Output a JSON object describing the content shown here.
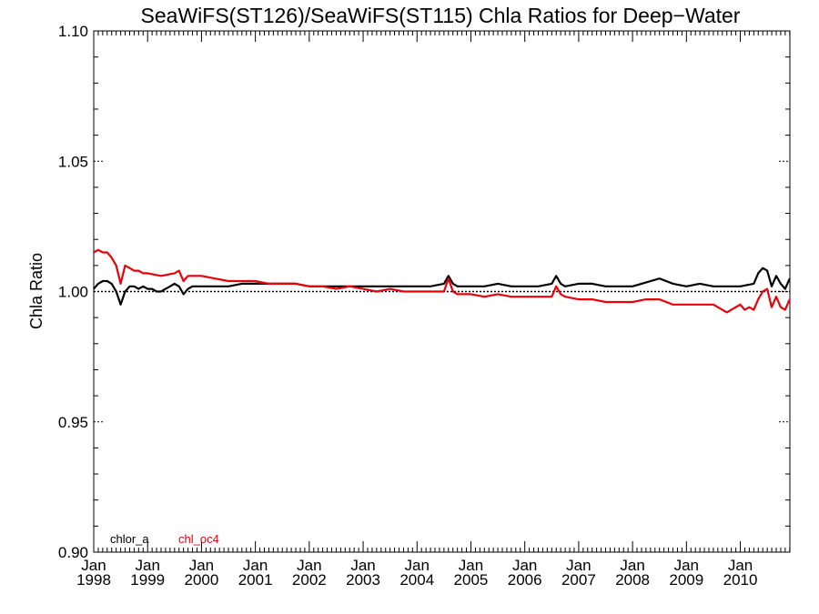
{
  "chart_data": {
    "type": "line",
    "title": "SeaWiFS(ST126)/SeaWiFS(ST115)  Chla Ratios for Deep−Water",
    "xlabel": "",
    "ylabel": "Chla Ratio",
    "xlim": [
      1998.0,
      2010.92
    ],
    "ylim": [
      0.9,
      1.1
    ],
    "y_ticks": [
      "0.90",
      "0.95",
      "1.00",
      "1.05",
      "1.10"
    ],
    "x_tick_labels": [
      {
        "month": "Jan",
        "year": "1998"
      },
      {
        "month": "Jan",
        "year": "1999"
      },
      {
        "month": "Jan",
        "year": "2000"
      },
      {
        "month": "Jan",
        "year": "2001"
      },
      {
        "month": "Jan",
        "year": "2002"
      },
      {
        "month": "Jan",
        "year": "2003"
      },
      {
        "month": "Jan",
        "year": "2004"
      },
      {
        "month": "Jan",
        "year": "2005"
      },
      {
        "month": "Jan",
        "year": "2006"
      },
      {
        "month": "Jan",
        "year": "2007"
      },
      {
        "month": "Jan",
        "year": "2008"
      },
      {
        "month": "Jan",
        "year": "2009"
      },
      {
        "month": "Jan",
        "year": "2010"
      }
    ],
    "reference_line": 1.0,
    "grid": false,
    "legend_position": "bottom-left",
    "series": [
      {
        "name": "chlor_a",
        "color": "#000000",
        "x": [
          1998.0,
          1998.083,
          1998.167,
          1998.25,
          1998.333,
          1998.417,
          1998.5,
          1998.583,
          1998.667,
          1998.75,
          1998.833,
          1998.917,
          1999.0,
          1999.083,
          1999.167,
          1999.25,
          1999.333,
          1999.417,
          1999.5,
          1999.583,
          1999.667,
          1999.75,
          1999.833,
          1999.917,
          2000.0,
          2000.25,
          2000.5,
          2000.75,
          2001.0,
          2001.25,
          2001.5,
          2001.75,
          2002.0,
          2002.25,
          2002.5,
          2002.75,
          2003.0,
          2003.25,
          2003.5,
          2003.75,
          2004.0,
          2004.25,
          2004.5,
          2004.583,
          2004.667,
          2004.75,
          2005.0,
          2005.25,
          2005.5,
          2005.75,
          2006.0,
          2006.25,
          2006.5,
          2006.583,
          2006.667,
          2006.75,
          2007.0,
          2007.25,
          2007.5,
          2007.75,
          2008.0,
          2008.5,
          2008.75,
          2009.0,
          2009.25,
          2009.5,
          2009.75,
          2010.0,
          2010.25,
          2010.333,
          2010.417,
          2010.5,
          2010.583,
          2010.667,
          2010.75,
          2010.833,
          2010.917
        ],
        "y": [
          1.001,
          1.003,
          1.004,
          1.004,
          1.003,
          1.0,
          0.995,
          1.0,
          1.002,
          1.002,
          1.001,
          1.002,
          1.001,
          1.001,
          1.0,
          1.0,
          1.001,
          1.002,
          1.003,
          1.002,
          0.999,
          1.001,
          1.002,
          1.002,
          1.002,
          1.002,
          1.002,
          1.003,
          1.003,
          1.003,
          1.003,
          1.003,
          1.002,
          1.002,
          1.002,
          1.002,
          1.002,
          1.002,
          1.002,
          1.002,
          1.002,
          1.002,
          1.003,
          1.006,
          1.003,
          1.002,
          1.002,
          1.002,
          1.003,
          1.002,
          1.002,
          1.002,
          1.003,
          1.006,
          1.003,
          1.002,
          1.003,
          1.003,
          1.002,
          1.002,
          1.002,
          1.005,
          1.003,
          1.002,
          1.003,
          1.002,
          1.002,
          1.002,
          1.003,
          1.007,
          1.009,
          1.008,
          1.002,
          1.006,
          1.003,
          1.001,
          1.005
        ]
      },
      {
        "name": "chl_oc4",
        "color": "#e8000b",
        "x": [
          1998.0,
          1998.083,
          1998.167,
          1998.25,
          1998.333,
          1998.417,
          1998.5,
          1998.583,
          1998.667,
          1998.75,
          1998.833,
          1998.917,
          1999.0,
          1999.25,
          1999.5,
          1999.583,
          1999.667,
          1999.75,
          2000.0,
          2000.25,
          2000.5,
          2000.75,
          2001.0,
          2001.25,
          2001.5,
          2001.75,
          2002.0,
          2002.25,
          2002.5,
          2002.75,
          2003.0,
          2003.25,
          2003.5,
          2003.75,
          2004.0,
          2004.25,
          2004.5,
          2004.583,
          2004.667,
          2004.75,
          2005.0,
          2005.25,
          2005.5,
          2005.75,
          2006.0,
          2006.25,
          2006.5,
          2006.583,
          2006.667,
          2006.75,
          2007.0,
          2007.25,
          2007.5,
          2007.75,
          2008.0,
          2008.25,
          2008.5,
          2008.75,
          2009.0,
          2009.25,
          2009.5,
          2009.75,
          2010.0,
          2010.083,
          2010.167,
          2010.25,
          2010.333,
          2010.417,
          2010.5,
          2010.583,
          2010.667,
          2010.75,
          2010.833,
          2010.917
        ],
        "y": [
          1.015,
          1.016,
          1.015,
          1.015,
          1.013,
          1.01,
          1.003,
          1.01,
          1.009,
          1.008,
          1.008,
          1.007,
          1.007,
          1.006,
          1.007,
          1.008,
          1.004,
          1.006,
          1.006,
          1.005,
          1.004,
          1.004,
          1.004,
          1.003,
          1.003,
          1.003,
          1.002,
          1.002,
          1.001,
          1.002,
          1.001,
          1.0,
          1.001,
          1.0,
          1.0,
          1.0,
          1.0,
          1.005,
          1.0,
          0.999,
          0.999,
          0.998,
          0.999,
          0.998,
          0.998,
          0.998,
          0.998,
          1.002,
          0.999,
          0.998,
          0.997,
          0.997,
          0.996,
          0.996,
          0.996,
          0.997,
          0.997,
          0.995,
          0.995,
          0.995,
          0.995,
          0.992,
          0.995,
          0.993,
          0.994,
          0.993,
          0.997,
          1.0,
          1.001,
          0.994,
          0.998,
          0.994,
          0.993,
          0.997
        ]
      }
    ]
  }
}
